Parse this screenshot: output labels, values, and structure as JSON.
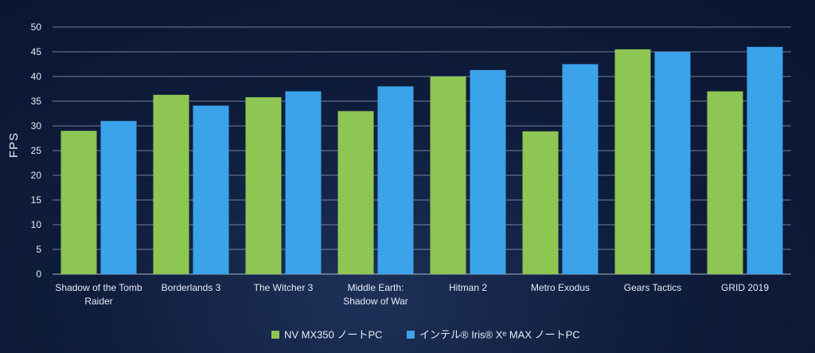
{
  "chart_data": {
    "type": "bar",
    "title": "",
    "xlabel": "",
    "ylabel": "FPS",
    "ylim": [
      0,
      50
    ],
    "yticks": [
      "0",
      "5",
      "10",
      "15",
      "20",
      "25",
      "30",
      "35",
      "40",
      "45",
      "50"
    ],
    "grid": true,
    "legend_position": "bottom-center",
    "categories": [
      [
        "Shadow of the Tomb",
        "Raider"
      ],
      [
        "Borderlands 3"
      ],
      [
        "The Witcher 3"
      ],
      [
        "Middle Earth:",
        "Shadow of War"
      ],
      [
        "Hitman 2"
      ],
      [
        "Metro Exodus"
      ],
      [
        "Gears Tactics"
      ],
      [
        "GRID 2019"
      ]
    ],
    "series": [
      {
        "name": "NV MX350 ノートPC",
        "color": "#8dc653",
        "values": [
          29,
          36.3,
          35.8,
          33,
          40,
          28.9,
          45.5,
          37
        ]
      },
      {
        "name": "インテル® Iris® Xᵉ MAX ノートPC",
        "color": "#3aa3ea",
        "values": [
          31,
          34.1,
          37,
          38,
          41.3,
          42.5,
          45,
          46
        ]
      }
    ]
  }
}
